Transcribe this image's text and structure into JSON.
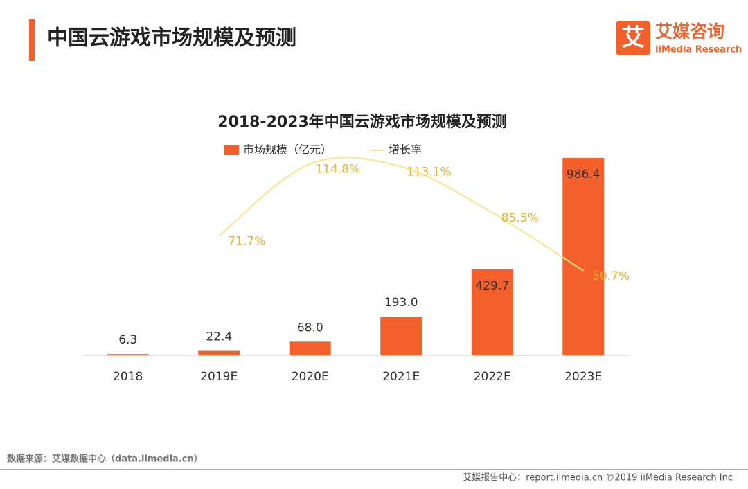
{
  "page": {
    "title": "中国云游戏市场规模及预测",
    "logo_mark": "艾",
    "logo_name": "艾媒咨询",
    "logo_sub": "iiMedia Research",
    "source": "数据来源：艾媒数据中心（data.iimedia.cn）",
    "footer": "艾媒报告中心：report.iimedia.cn ©2019  iiMedia Research  Inc"
  },
  "chart_data": {
    "type": "bar",
    "title": "2018-2023年中国云游戏市场规模及预测",
    "categories": [
      "2018",
      "2019E",
      "2020E",
      "2021E",
      "2022E",
      "2023E"
    ],
    "ylim": [
      0,
      1000
    ],
    "y2lim": [
      0,
      120
    ],
    "series": [
      {
        "name": "市场规模（亿元）",
        "color": "#f4602c",
        "values": [
          6.3,
          22.4,
          68,
          193,
          429.7,
          986.4
        ],
        "value_labels": [
          "6.3",
          "22.4",
          "68.0",
          "193.0",
          "429.7",
          "986.4"
        ]
      },
      {
        "name": "增长率",
        "type": "line",
        "axis": "y2",
        "color": "#f7e68a",
        "label_color": "#e9b12c",
        "values": [
          null,
          71.7,
          114.8,
          113.1,
          85.5,
          50.7
        ],
        "value_labels": [
          null,
          "71.7%",
          "114.8%",
          "113.1%",
          "85.5%",
          "50.7%"
        ]
      }
    ]
  }
}
